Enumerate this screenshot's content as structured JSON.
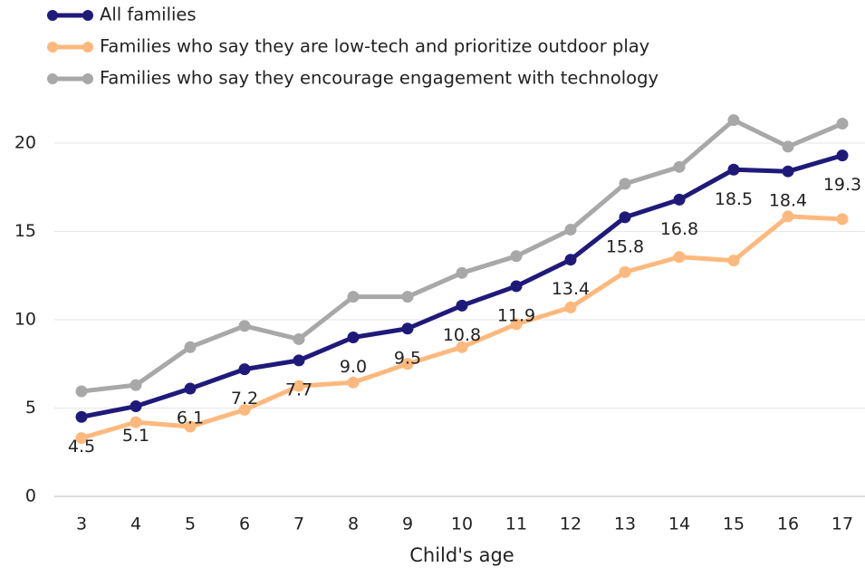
{
  "chart_data": {
    "type": "line",
    "x_label": "Child's age",
    "x": [
      3,
      4,
      5,
      6,
      7,
      8,
      9,
      10,
      11,
      12,
      13,
      14,
      15,
      16,
      17
    ],
    "xlim": [
      2.5,
      17.5
    ],
    "xticks": [
      3,
      4,
      5,
      6,
      7,
      8,
      9,
      10,
      11,
      12,
      13,
      14,
      15,
      16,
      17
    ],
    "ylim": [
      0,
      22
    ],
    "yticks": [
      0,
      5,
      10,
      15,
      20
    ],
    "grid": true,
    "legend": "top-left",
    "series": [
      {
        "name": "All families",
        "color": "#1f1a7a",
        "values": [
          4.5,
          5.1,
          6.1,
          7.2,
          7.7,
          9.0,
          9.5,
          10.8,
          11.9,
          13.4,
          15.8,
          16.8,
          18.5,
          18.4,
          19.3
        ],
        "value_labels": [
          "4.5",
          "5.1",
          "6.1",
          "7.2",
          "7.7",
          "9.0",
          "9.5",
          "10.8",
          "11.9",
          "13.4",
          "15.8",
          "16.8",
          "18.5",
          "18.4",
          "19.3"
        ]
      },
      {
        "name": "Families who say they are low-tech and prioritize outdoor play",
        "color": "#fdb97d",
        "values": [
          3.3,
          4.2,
          3.95,
          4.9,
          6.25,
          6.45,
          7.5,
          8.45,
          9.75,
          10.7,
          12.7,
          13.55,
          13.35,
          15.85,
          15.7
        ]
      },
      {
        "name": "Families who say they encourage engagement with technology",
        "color": "#a8a8a8",
        "values": [
          5.95,
          6.3,
          8.45,
          9.65,
          8.9,
          11.3,
          11.3,
          12.65,
          13.6,
          15.1,
          17.7,
          18.65,
          21.3,
          19.8,
          21.1
        ]
      }
    ]
  }
}
